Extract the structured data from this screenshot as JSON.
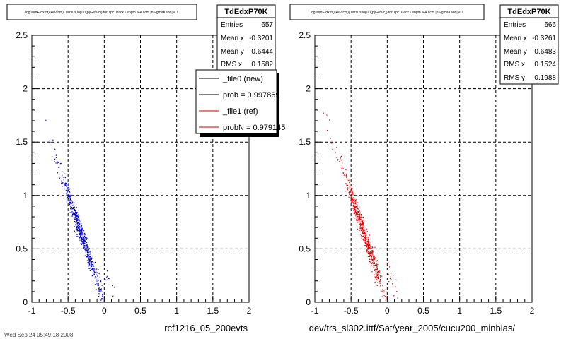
{
  "chart_data": [
    {
      "type": "scatter",
      "title": "log10(dE/dx(fit)(keV/cm)) versus log10(p(GeV/c)) for Tpc Track Length > 40 cm |nSigmaKaon| < 1",
      "xlim": [
        -1,
        2
      ],
      "ylim": [
        0,
        2.5
      ],
      "xticks": [
        "-1",
        "-0.5",
        "0",
        "0.5",
        "1",
        "1.5",
        "2"
      ],
      "yticks": [
        "0",
        "0.5",
        "1",
        "1.5",
        "2",
        "2.5"
      ],
      "grid": true,
      "caption": "rcf1216_05_200evts",
      "color": "#0000cc",
      "stats": {
        "name": "TdEdxP70K",
        "rows": [
          {
            "label": "Entries",
            "value": "657"
          },
          {
            "label": "Mean x",
            "value": "-0.3201"
          },
          {
            "label": "Mean y",
            "value": "0.6444"
          },
          {
            "label": "RMS x",
            "value": "0.1582"
          }
        ]
      },
      "legend": {
        "position": "right",
        "entries": [
          {
            "label": "_file0 (new)",
            "color": "#000000"
          },
          {
            "label": "prob = 0.997869",
            "color": "#000000"
          },
          {
            "label": "_file1 (ref)",
            "color": "#cc0000"
          },
          {
            "label": "probN = 0.979145",
            "color": "#cc0000"
          }
        ]
      },
      "distribution": {
        "n": 657,
        "slope": -2.0,
        "intercept": 0.0,
        "x_center": -0.32,
        "x_spread": 0.14,
        "y_noise": 0.05,
        "seed": 7
      }
    },
    {
      "type": "scatter",
      "title": "log10(dE/dx(fit)(keV/cm)) versus log10(p(GeV/c)) for Tpc Track Length > 40 cm |nSigmaKaon| < 1",
      "xlim": [
        -1,
        2
      ],
      "ylim": [
        0,
        2.5
      ],
      "xticks": [
        "-1",
        "-0.5",
        "0",
        "0.5",
        "1",
        "1.5",
        "2"
      ],
      "yticks": [
        "0",
        "0.5",
        "1",
        "1.5",
        "2",
        "2.5"
      ],
      "grid": true,
      "caption": "dev/trs_sl302.ittf/Sat/year_2005/cucu200_minbias/",
      "color": "#dd0000",
      "stats": {
        "name": "TdEdxP70K",
        "rows": [
          {
            "label": "Entries",
            "value": "666"
          },
          {
            "label": "Mean x",
            "value": "-0.3261"
          },
          {
            "label": "Mean y",
            "value": "0.6483"
          },
          {
            "label": "RMS x",
            "value": "0.1524"
          },
          {
            "label": "RMS y",
            "value": "0.1988"
          }
        ]
      },
      "distribution": {
        "n": 666,
        "slope": -2.0,
        "intercept": 0.0,
        "x_center": -0.33,
        "x_spread": 0.135,
        "y_noise": 0.05,
        "seed": 13
      }
    }
  ],
  "footer": "Wed Sep 24 05:49:18 2008"
}
